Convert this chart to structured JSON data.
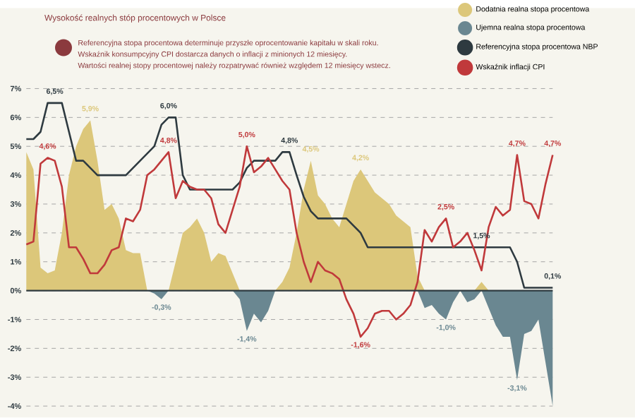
{
  "chart_data": {
    "type": "line",
    "title": "Wysokość realnych stóp procentowych w Polsce",
    "annotations": [
      "Referencyjna stopa procentowa determinuje przyszłe oprocentowanie kapitału w skali roku.",
      "Wskaźnik konsumpcyjny CPI dostarcza danych o inflacji z minionych 12 miesięcy.",
      "Wartości realnej stopy procentowej należy rozpatrywać również względem 12 miesięcy wstecz."
    ],
    "categories": [
      null,
      null,
      null,
      null,
      null,
      null,
      null,
      null,
      null,
      null,
      null,
      null,
      null,
      null,
      null,
      null,
      null,
      null,
      null,
      null,
      null,
      null,
      null,
      null,
      null,
      null,
      null,
      null,
      null,
      null,
      null,
      null,
      null,
      null,
      null,
      null,
      null,
      null,
      null,
      null,
      null,
      null,
      null,
      null,
      null,
      null,
      null,
      null,
      null,
      null,
      null,
      null,
      null,
      null,
      null,
      null,
      null,
      null,
      null,
      null,
      null,
      null,
      null,
      null,
      null,
      null,
      null,
      null,
      null,
      null,
      null,
      null,
      null,
      null,
      null
    ],
    "series": [
      {
        "name": "Dodatnia realna stopa procentowa",
        "type": "area",
        "color": "#dcc77a",
        "values": [
          4.8,
          4.2,
          0.8,
          0.6,
          0.7,
          2.0,
          4.0,
          5.0,
          5.6,
          5.9,
          4.5,
          2.8,
          3.0,
          2.5,
          1.4,
          1.3,
          1.3,
          0,
          0,
          0,
          0,
          1.0,
          2.0,
          2.2,
          2.5,
          2.0,
          1.0,
          1.3,
          1.2,
          0.6,
          0,
          0,
          0,
          0,
          0,
          0,
          0.3,
          0.8,
          2.0,
          3.5,
          4.5,
          3.3,
          3.0,
          2.5,
          2.2,
          3.0,
          3.8,
          4.2,
          3.8,
          3.4,
          3.2,
          3.0,
          2.6,
          2.4,
          2.2,
          0.5,
          0,
          0,
          0,
          0,
          0,
          0,
          0,
          0,
          0.3,
          0,
          0,
          0,
          0,
          0,
          0,
          0,
          0,
          0,
          0
        ],
        "value_labels": [
          null,
          null,
          null,
          null,
          null,
          null,
          null,
          null,
          null,
          "5,9%",
          null,
          null,
          null,
          null,
          null,
          null,
          null,
          null,
          null,
          null,
          null,
          null,
          null,
          null,
          null,
          null,
          null,
          null,
          null,
          null,
          null,
          null,
          null,
          null,
          null,
          null,
          null,
          null,
          null,
          null,
          "4,5%",
          null,
          null,
          null,
          null,
          null,
          null,
          "4,2%",
          null,
          null,
          null,
          null,
          null,
          null,
          null,
          null,
          null,
          null,
          null,
          null,
          null,
          null,
          null,
          null,
          null,
          null,
          null,
          null,
          null,
          null,
          null,
          null,
          null,
          null,
          null
        ]
      },
      {
        "name": "Ujemna realna stopa procentowa",
        "type": "area",
        "color": "#6a8791",
        "values": [
          0,
          0,
          0,
          0,
          0,
          0,
          0,
          0,
          0,
          0,
          0,
          0,
          0,
          0,
          0,
          0,
          0,
          0,
          -0.1,
          -0.3,
          0,
          0,
          0,
          0,
          0,
          0,
          0,
          0,
          0,
          0,
          -0.3,
          -1.4,
          -0.8,
          -1.1,
          -0.7,
          0,
          0,
          0,
          0,
          0,
          0,
          0,
          0,
          0,
          0,
          0,
          0,
          0,
          0,
          0,
          0,
          0,
          0,
          0,
          0,
          0,
          -0.6,
          -0.5,
          -0.8,
          -1.0,
          -0.4,
          0,
          -0.4,
          -0.3,
          0,
          -0.6,
          -1.2,
          -1.6,
          -1.6,
          -3.1,
          -1.5,
          -1.4,
          -1.0,
          -2.5,
          -4.0
        ],
        "value_labels": [
          null,
          null,
          null,
          null,
          null,
          null,
          null,
          null,
          null,
          null,
          null,
          null,
          null,
          null,
          null,
          null,
          null,
          null,
          null,
          "-0,3%",
          null,
          null,
          null,
          null,
          null,
          null,
          null,
          null,
          null,
          null,
          null,
          "-1,4%",
          null,
          null,
          null,
          null,
          null,
          null,
          null,
          null,
          null,
          null,
          null,
          null,
          null,
          null,
          null,
          null,
          null,
          null,
          null,
          null,
          null,
          null,
          null,
          null,
          null,
          null,
          null,
          "-1,0%",
          null,
          null,
          null,
          null,
          null,
          null,
          null,
          null,
          null,
          "-3,1%",
          null,
          null,
          null,
          null,
          null
        ]
      },
      {
        "name": "Referencyjna stopa procentowa NBP",
        "color": "#2e3a40",
        "values": [
          5.25,
          5.25,
          5.5,
          6.5,
          6.5,
          6.5,
          5.5,
          4.5,
          4.5,
          4.25,
          4.0,
          4.0,
          4.0,
          4.0,
          4.0,
          4.25,
          4.5,
          4.75,
          5.0,
          5.75,
          6.0,
          6.0,
          4.0,
          3.5,
          3.5,
          3.5,
          3.5,
          3.5,
          3.5,
          3.5,
          3.75,
          4.25,
          4.5,
          4.5,
          4.5,
          4.5,
          4.8,
          4.8,
          4.0,
          3.25,
          2.75,
          2.5,
          2.5,
          2.5,
          2.5,
          2.5,
          2.25,
          2.0,
          1.5,
          1.5,
          1.5,
          1.5,
          1.5,
          1.5,
          1.5,
          1.5,
          1.5,
          1.5,
          1.5,
          1.5,
          1.5,
          1.5,
          1.5,
          1.5,
          1.5,
          1.5,
          1.5,
          1.5,
          1.5,
          1.0,
          0.1,
          0.1,
          0.1,
          0.1,
          0.1
        ],
        "value_labels": [
          null,
          null,
          null,
          null,
          "6,5%",
          null,
          null,
          null,
          null,
          null,
          null,
          null,
          null,
          null,
          null,
          null,
          null,
          null,
          null,
          null,
          "6,0%",
          null,
          null,
          null,
          null,
          null,
          null,
          null,
          null,
          null,
          null,
          null,
          null,
          null,
          null,
          null,
          null,
          "4,8%",
          null,
          null,
          null,
          null,
          null,
          null,
          null,
          null,
          null,
          null,
          null,
          null,
          null,
          null,
          null,
          null,
          null,
          null,
          null,
          null,
          null,
          null,
          null,
          null,
          null,
          null,
          "1,5%",
          null,
          null,
          null,
          null,
          null,
          null,
          null,
          null,
          null,
          "0,1%"
        ]
      },
      {
        "name": "Wskaźnik inflacji CPI",
        "color": "#c0393b",
        "values": [
          1.6,
          1.7,
          4.4,
          4.6,
          4.5,
          3.6,
          1.5,
          1.5,
          1.1,
          0.6,
          0.6,
          0.9,
          1.4,
          1.5,
          2.5,
          2.4,
          2.8,
          4.0,
          4.2,
          4.5,
          4.8,
          3.2,
          3.8,
          3.6,
          3.5,
          3.5,
          3.2,
          2.3,
          2.0,
          2.8,
          3.6,
          5.0,
          4.1,
          4.3,
          4.6,
          4.2,
          3.8,
          3.5,
          2.0,
          1.0,
          0.3,
          1.0,
          0.7,
          0.6,
          0.4,
          -0.3,
          -0.8,
          -1.6,
          -1.3,
          -0.8,
          -0.7,
          -0.7,
          -1.0,
          -0.8,
          -0.5,
          0.3,
          2.1,
          1.7,
          2.2,
          2.5,
          1.5,
          1.7,
          2.0,
          1.4,
          0.7,
          2.2,
          2.9,
          2.6,
          2.8,
          4.7,
          3.1,
          3.0,
          2.5,
          3.7,
          4.7
        ],
        "value_labels": [
          null,
          null,
          null,
          "4,6%",
          null,
          null,
          null,
          null,
          null,
          null,
          null,
          null,
          null,
          null,
          null,
          null,
          null,
          null,
          null,
          null,
          "4,8%",
          null,
          null,
          null,
          null,
          null,
          null,
          null,
          null,
          null,
          null,
          "5,0%",
          null,
          null,
          null,
          null,
          null,
          null,
          null,
          null,
          null,
          null,
          null,
          null,
          null,
          null,
          null,
          "-1,6%",
          null,
          null,
          null,
          null,
          null,
          null,
          null,
          null,
          null,
          null,
          null,
          "2,5%",
          null,
          null,
          null,
          null,
          null,
          null,
          null,
          null,
          null,
          "4,7%",
          null,
          null,
          null,
          null,
          "4,7%"
        ]
      }
    ],
    "ylim": [
      -4.4,
      7
    ],
    "yticks": [
      {
        "value": -4,
        "label": "-4%"
      },
      {
        "value": -3,
        "label": "-3%"
      },
      {
        "value": -2,
        "label": "-2%"
      },
      {
        "value": -1,
        "label": "-1%"
      },
      {
        "value": 0,
        "label": "0%"
      },
      {
        "value": 1,
        "label": "1%"
      },
      {
        "value": 2,
        "label": "2%"
      },
      {
        "value": 3,
        "label": "3%"
      },
      {
        "value": 4,
        "label": "4%"
      },
      {
        "value": 5,
        "label": "5%"
      },
      {
        "value": 6,
        "label": "6%"
      },
      {
        "value": 7,
        "label": "7%"
      }
    ],
    "grid": "y",
    "legend": "top right",
    "tick_labels": "y"
  }
}
